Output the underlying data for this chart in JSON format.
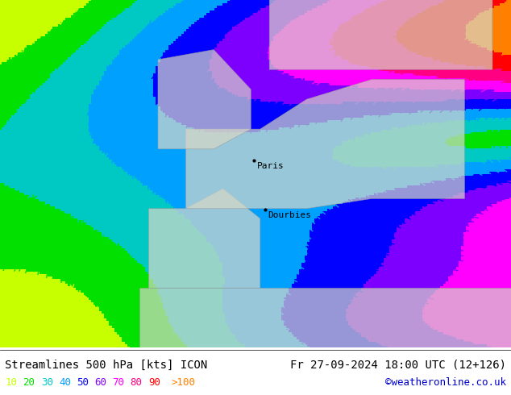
{
  "title_left": "Streamlines 500 hPa [kts] ICON",
  "title_right": "Fr 27-09-2024 18:00 UTC (12+126)",
  "credit": "©weatheronline.co.uk",
  "legend_values": [
    "10",
    "20",
    "30",
    "40",
    "50",
    "60",
    "70",
    "80",
    "90",
    ">100"
  ],
  "legend_colors": [
    "#c8ff00",
    "#00e000",
    "#00c8c8",
    "#00a0ff",
    "#0000ff",
    "#8000ff",
    "#ff00ff",
    "#ff0080",
    "#ff0000",
    "#ff8000"
  ],
  "background_color": "#aaddaa",
  "land_color": "#d8d8c8",
  "title_font_color": "#000000",
  "credit_color": "#0000cc",
  "figsize": [
    6.34,
    4.9
  ],
  "dpi": 100,
  "colormap_colors": [
    [
      0.0,
      "#c8ff00"
    ],
    [
      0.111,
      "#00e000"
    ],
    [
      0.222,
      "#00c8c8"
    ],
    [
      0.333,
      "#00a0ff"
    ],
    [
      0.444,
      "#0000ff"
    ],
    [
      0.556,
      "#8000ff"
    ],
    [
      0.667,
      "#ff00ff"
    ],
    [
      0.778,
      "#ff0080"
    ],
    [
      0.889,
      "#ff0000"
    ],
    [
      1.0,
      "#ff8000"
    ]
  ],
  "speed_levels": [
    10,
    20,
    30,
    40,
    50,
    60,
    70,
    80,
    90,
    100,
    120
  ],
  "city_paris": {
    "name": "Paris",
    "lon": 2.35,
    "lat": 48.85
  },
  "city_dourbies": {
    "name": "Dourbies",
    "lon": 3.5,
    "lat": 43.9
  },
  "extent": [
    -25,
    30,
    30,
    65
  ]
}
